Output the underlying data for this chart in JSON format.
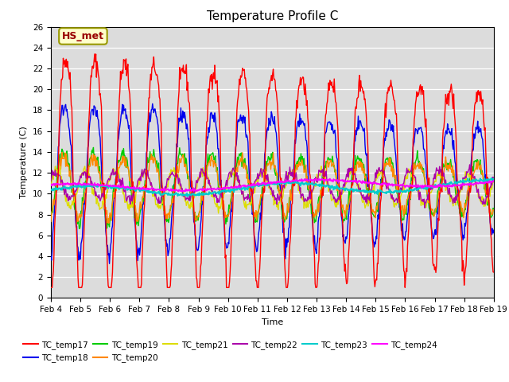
{
  "title": "Temperature Profile C",
  "xlabel": "Time",
  "ylabel": "Temperature (C)",
  "ylim": [
    0,
    26
  ],
  "yticks": [
    0,
    2,
    4,
    6,
    8,
    10,
    12,
    14,
    16,
    18,
    20,
    22,
    24,
    26
  ],
  "annotation_text": "HS_met",
  "annotation_bbox": {
    "facecolor": "#ffffcc",
    "edgecolor": "#999900",
    "boxstyle": "round,pad=0.3"
  },
  "annotation_color": "#990000",
  "background_color": "#dcdcdc",
  "series_colors": {
    "TC_temp17": "#ff0000",
    "TC_temp18": "#0000ee",
    "TC_temp19": "#00cc00",
    "TC_temp20": "#ff8800",
    "TC_temp21": "#dddd00",
    "TC_temp22": "#aa00aa",
    "TC_temp23": "#00cccc",
    "TC_temp24": "#ff00ff"
  },
  "legend_series": [
    "TC_temp17",
    "TC_temp18",
    "TC_temp19",
    "TC_temp20",
    "TC_temp21",
    "TC_temp22",
    "TC_temp23",
    "TC_temp24"
  ],
  "xtick_labels": [
    "Feb 4",
    "Feb 5",
    "Feb 6",
    "Feb 7",
    "Feb 8",
    "Feb 9",
    "Feb 10",
    "Feb 11",
    "Feb 12",
    "Feb 13",
    "Feb 14",
    "Feb 15",
    "Feb 16",
    "Feb 17",
    "Feb 18",
    "Feb 19"
  ],
  "n_points": 720,
  "seed": 42
}
